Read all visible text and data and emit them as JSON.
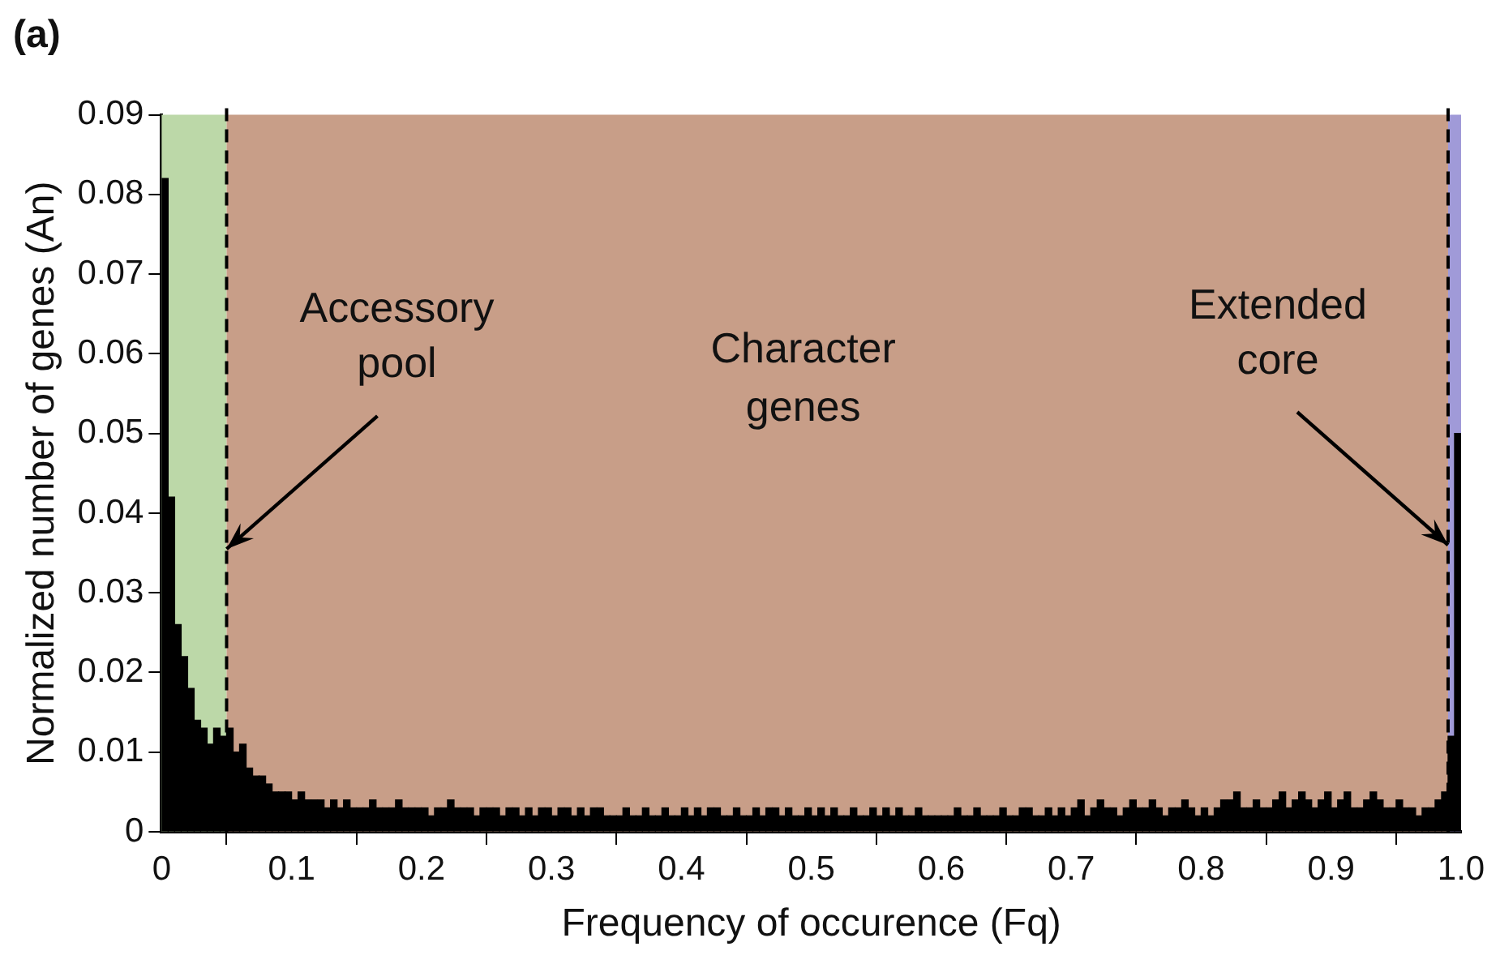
{
  "chart_data": {
    "type": "histogram",
    "title": "(a)",
    "xlabel": "Frequency of occurence (Fq)",
    "ylabel": "Normalized number of genes (An)",
    "bins": [
      0,
      0.005,
      0.01,
      0.015,
      0.02,
      0.025,
      0.03,
      0.035,
      0.04,
      0.045,
      0.05,
      0.055,
      0.06,
      0.065,
      0.07,
      0.075,
      0.08,
      0.085,
      0.09,
      0.095,
      0.1,
      0.105,
      0.11,
      0.115,
      0.12,
      0.125,
      0.13,
      0.135,
      0.14,
      0.145,
      0.15,
      0.155,
      0.16,
      0.165,
      0.17,
      0.175,
      0.18,
      0.185,
      0.19,
      0.195,
      0.2,
      0.205,
      0.21,
      0.215,
      0.22,
      0.225,
      0.23,
      0.235,
      0.24,
      0.245,
      0.25,
      0.255,
      0.26,
      0.265,
      0.27,
      0.275,
      0.28,
      0.285,
      0.29,
      0.295,
      0.3,
      0.305,
      0.31,
      0.315,
      0.32,
      0.325,
      0.33,
      0.335,
      0.34,
      0.345,
      0.35,
      0.355,
      0.36,
      0.365,
      0.37,
      0.375,
      0.38,
      0.385,
      0.39,
      0.395,
      0.4,
      0.405,
      0.41,
      0.415,
      0.42,
      0.425,
      0.43,
      0.435,
      0.44,
      0.445,
      0.45,
      0.455,
      0.46,
      0.465,
      0.47,
      0.475,
      0.48,
      0.485,
      0.49,
      0.495,
      0.5,
      0.505,
      0.51,
      0.515,
      0.52,
      0.525,
      0.53,
      0.535,
      0.54,
      0.545,
      0.55,
      0.555,
      0.56,
      0.565,
      0.57,
      0.575,
      0.58,
      0.585,
      0.59,
      0.595,
      0.6,
      0.605,
      0.61,
      0.615,
      0.62,
      0.625,
      0.63,
      0.635,
      0.64,
      0.645,
      0.65,
      0.655,
      0.66,
      0.665,
      0.67,
      0.675,
      0.68,
      0.685,
      0.69,
      0.695,
      0.7,
      0.705,
      0.71,
      0.715,
      0.72,
      0.725,
      0.73,
      0.735,
      0.74,
      0.745,
      0.75,
      0.755,
      0.76,
      0.765,
      0.77,
      0.775,
      0.78,
      0.785,
      0.79,
      0.795,
      0.8,
      0.805,
      0.81,
      0.815,
      0.82,
      0.825,
      0.83,
      0.835,
      0.84,
      0.845,
      0.85,
      0.855,
      0.86,
      0.865,
      0.87,
      0.875,
      0.88,
      0.885,
      0.89,
      0.895,
      0.9,
      0.905,
      0.91,
      0.915,
      0.92,
      0.925,
      0.93,
      0.935,
      0.94,
      0.945,
      0.95,
      0.955,
      0.96,
      0.965,
      0.97,
      0.975,
      0.98,
      0.985,
      0.99,
      0.995,
      1
    ],
    "values": [
      0.082,
      0.042,
      0.026,
      0.022,
      0.018,
      0.014,
      0.013,
      0.011,
      0.013,
      0.012,
      0.013,
      0.01,
      0.011,
      0.008,
      0.007,
      0.007,
      0.006,
      0.005,
      0.005,
      0.005,
      0.004,
      0.005,
      0.004,
      0.004,
      0.004,
      0.003,
      0.004,
      0.003,
      0.004,
      0.003,
      0.003,
      0.003,
      0.004,
      0.003,
      0.003,
      0.003,
      0.004,
      0.003,
      0.003,
      0.003,
      0.003,
      0.002,
      0.003,
      0.003,
      0.004,
      0.003,
      0.003,
      0.003,
      0.002,
      0.003,
      0.003,
      0.003,
      0.002,
      0.003,
      0.003,
      0.002,
      0.003,
      0.002,
      0.003,
      0.003,
      0.002,
      0.003,
      0.003,
      0.002,
      0.003,
      0.002,
      0.003,
      0.003,
      0.002,
      0.002,
      0.002,
      0.003,
      0.002,
      0.002,
      0.003,
      0.002,
      0.002,
      0.003,
      0.002,
      0.002,
      0.003,
      0.002,
      0.003,
      0.002,
      0.003,
      0.003,
      0.002,
      0.002,
      0.003,
      0.002,
      0.002,
      0.003,
      0.002,
      0.003,
      0.003,
      0.002,
      0.003,
      0.002,
      0.002,
      0.003,
      0.002,
      0.003,
      0.002,
      0.003,
      0.002,
      0.002,
      0.003,
      0.002,
      0.002,
      0.003,
      0.002,
      0.003,
      0.002,
      0.003,
      0.002,
      0.002,
      0.003,
      0.002,
      0.002,
      0.002,
      0.002,
      0.002,
      0.003,
      0.002,
      0.002,
      0.003,
      0.002,
      0.002,
      0.002,
      0.003,
      0.002,
      0.002,
      0.003,
      0.003,
      0.002,
      0.002,
      0.003,
      0.002,
      0.003,
      0.002,
      0.003,
      0.004,
      0.002,
      0.003,
      0.004,
      0.003,
      0.003,
      0.002,
      0.003,
      0.004,
      0.003,
      0.003,
      0.004,
      0.003,
      0.002,
      0.003,
      0.003,
      0.004,
      0.003,
      0.002,
      0.003,
      0.002,
      0.003,
      0.004,
      0.004,
      0.005,
      0.003,
      0.003,
      0.004,
      0.003,
      0.003,
      0.004,
      0.005,
      0.003,
      0.004,
      0.005,
      0.004,
      0.003,
      0.004,
      0.005,
      0.003,
      0.004,
      0.005,
      0.003,
      0.003,
      0.004,
      0.005,
      0.004,
      0.003,
      0.003,
      0.004,
      0.003,
      0.003,
      0.002,
      0.003,
      0.003,
      0.004,
      0.005,
      0.012,
      0.05
    ],
    "color": "#000000",
    "xlim": [
      0,
      1
    ],
    "xticks": [
      0,
      0.1,
      0.2,
      0.3,
      0.4,
      0.5,
      0.6,
      0.7,
      0.8,
      0.9,
      {
        "value": 1,
        "label": "1.0"
      }
    ],
    "ylim": [
      0,
      0.09
    ],
    "yticks": [
      0,
      0.01,
      0.02,
      0.03,
      0.04,
      0.05,
      0.06,
      0.07,
      0.08,
      0.09
    ],
    "bands": [
      {
        "axis": "x",
        "from": 0,
        "to": 0.05,
        "color": "#bcd8a8"
      },
      {
        "axis": "x",
        "from": 0.05,
        "to": 0.99,
        "color": "#c89e88"
      },
      {
        "axis": "x",
        "from": 0.99,
        "to": 1,
        "color": "#a09ad8"
      }
    ],
    "ref_lines": [
      {
        "axis": "x",
        "value": 0.05,
        "color": "#000000",
        "line_style": "dashed"
      },
      {
        "axis": "x",
        "value": 0.99,
        "color": "#000000",
        "line_style": "dashed"
      }
    ],
    "annotations": [
      {
        "text": "Accessory\npool",
        "x": 0.05,
        "y": 0.0355
      },
      "Character\ngenes",
      {
        "text": "Extended\ncore",
        "x": 0.99,
        "y": 0.036
      }
    ],
    "grid": false
  }
}
